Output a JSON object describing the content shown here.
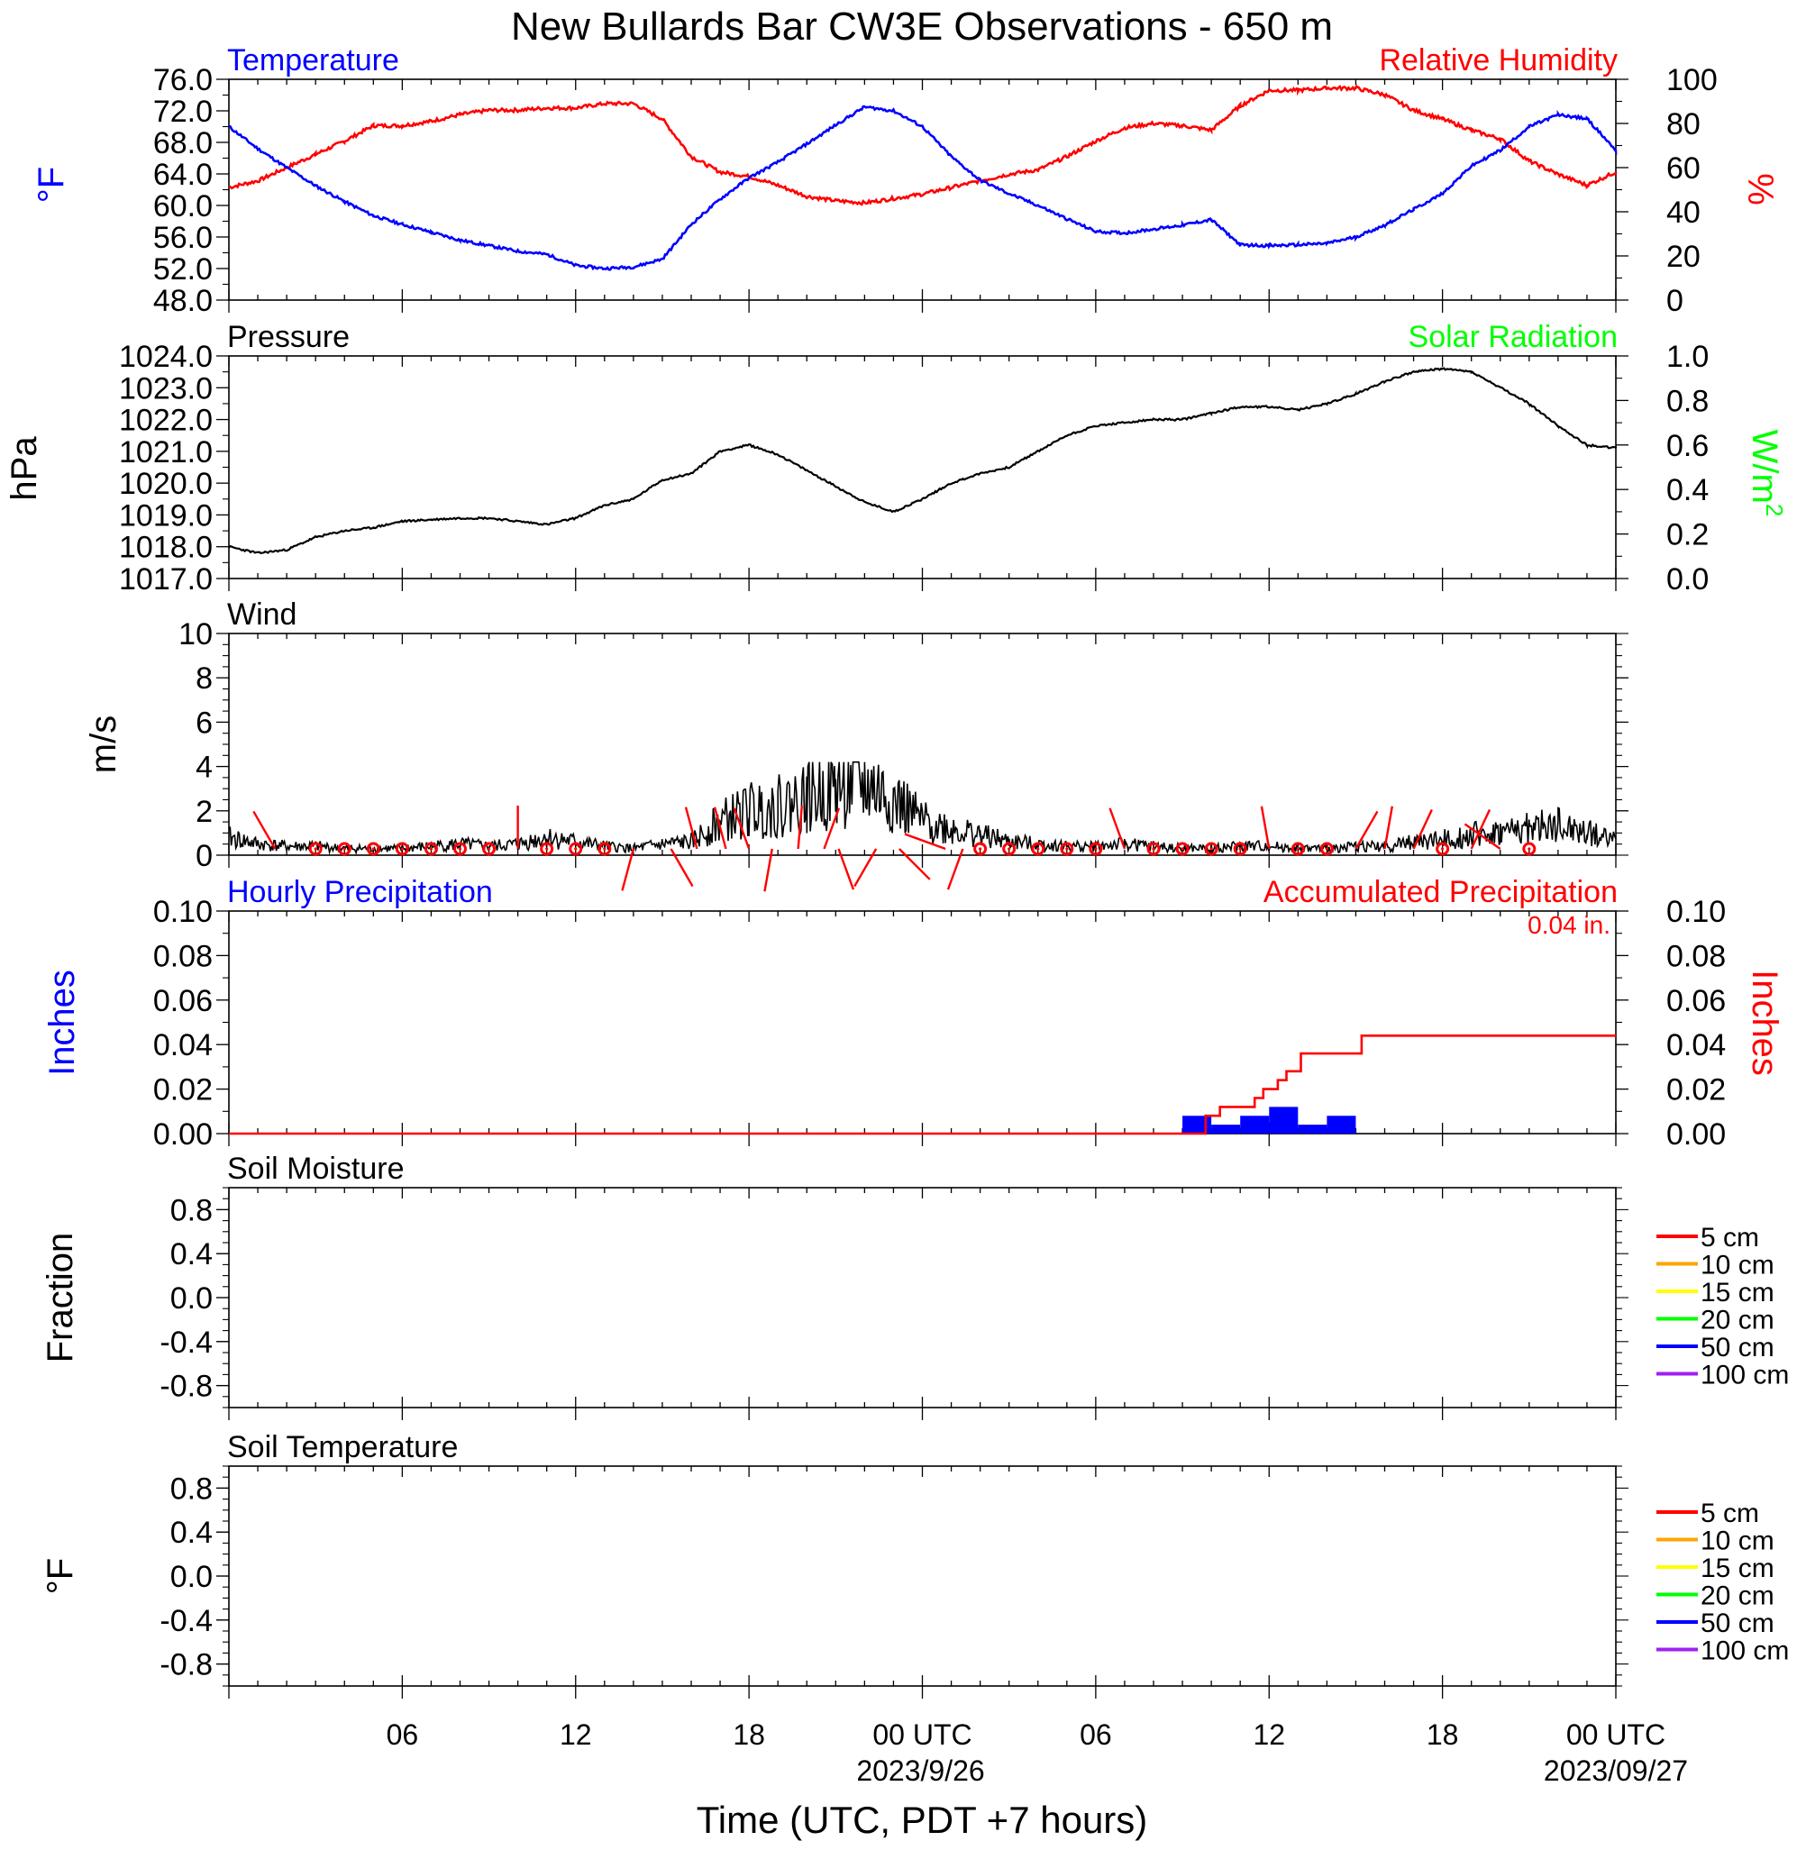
{
  "title": "New Bullards Bar CW3E Observations - 650 m",
  "x_axis": {
    "label": "Time (UTC, PDT +7 hours)",
    "ticks": [
      "06",
      "12",
      "18",
      "00 UTC",
      "06",
      "12",
      "18",
      "00 UTC"
    ],
    "dates": [
      "2023/9/26",
      "2023/09/27"
    ]
  },
  "colors": {
    "temperature": "#0000ff",
    "humidity": "#ff0000",
    "pressure": "#000000",
    "solar": "#00ff00",
    "wind": "#000000",
    "wind_barb": "#ff0000",
    "hourly_precip": "#0000ff",
    "accum_precip": "#ff0000"
  },
  "chart_data": [
    {
      "type": "line",
      "panel": "temperature-humidity",
      "left_title": "Temperature",
      "right_title": "Relative Humidity",
      "left_ylabel": "°F",
      "right_ylabel": "%",
      "left_ticks": [
        "76.0",
        "72.0",
        "68.0",
        "64.0",
        "60.0",
        "56.0",
        "52.0",
        "48.0"
      ],
      "right_ticks": [
        "100",
        "80",
        "60",
        "40",
        "20",
        "0"
      ],
      "left_ylim": [
        48,
        76
      ],
      "right_ylim": [
        0,
        100
      ],
      "x_hours": [
        0,
        1,
        2,
        3,
        4,
        5,
        6,
        7,
        8,
        9,
        10,
        11,
        12,
        13,
        14,
        15,
        16,
        17,
        18,
        19,
        20,
        21,
        22,
        23,
        24,
        25,
        26,
        27,
        28,
        29,
        30,
        31,
        32,
        33,
        34,
        35,
        36,
        37,
        38,
        39,
        40,
        41,
        42,
        43,
        44,
        45,
        46,
        47,
        48
      ],
      "series": [
        {
          "name": "Temperature",
          "axis": "left",
          "values": [
            70.0,
            67.2,
            64.8,
            62.5,
            60.5,
            58.7,
            57.6,
            56.6,
            55.6,
            54.9,
            54.2,
            53.8,
            52.4,
            52.0,
            52.2,
            53.2,
            57.6,
            60.8,
            63.5,
            65.5,
            67.8,
            70.2,
            72.5,
            72.0,
            70.0,
            66.2,
            63.2,
            61.5,
            60.0,
            58.3,
            56.7,
            56.5,
            57.0,
            57.5,
            58.2,
            55.0,
            54.9,
            55.0,
            55.2,
            56.0,
            57.5,
            59.5,
            61.5,
            65.0,
            67.0,
            70.0,
            71.5,
            71.0,
            67.0
          ]
        },
        {
          "name": "Relative Humidity",
          "axis": "right",
          "values": [
            51,
            54,
            60,
            66,
            72,
            79,
            79,
            81,
            84,
            86,
            86,
            87,
            87,
            89,
            89,
            82,
            65,
            58,
            56,
            52,
            47,
            45,
            44,
            46,
            48,
            51,
            54,
            57,
            59,
            65,
            72,
            78,
            80,
            79,
            77,
            88,
            95,
            95,
            96,
            96,
            93,
            86,
            82,
            77,
            73,
            63,
            57,
            52,
            58
          ]
        }
      ]
    },
    {
      "type": "line",
      "panel": "pressure-solar",
      "left_title": "Pressure",
      "right_title": "Solar Radiation",
      "left_ylabel": "hPa",
      "right_ylabel": "W/m",
      "right_ylabel_sup": "2",
      "left_ticks": [
        "1024.0",
        "1023.0",
        "1022.0",
        "1021.0",
        "1020.0",
        "1019.0",
        "1018.0",
        "1017.0"
      ],
      "right_ticks": [
        "1.0",
        "0.8",
        "0.6",
        "0.4",
        "0.2",
        "0.0"
      ],
      "left_ylim": [
        1017,
        1024
      ],
      "right_ylim": [
        0,
        1
      ],
      "x_hours": [
        0,
        1,
        2,
        3,
        4,
        5,
        6,
        7,
        8,
        9,
        10,
        11,
        12,
        13,
        14,
        15,
        16,
        17,
        18,
        19,
        20,
        21,
        22,
        23,
        24,
        25,
        26,
        27,
        28,
        29,
        30,
        31,
        32,
        33,
        34,
        35,
        36,
        37,
        38,
        39,
        40,
        41,
        42,
        43,
        44,
        45,
        46,
        47,
        48
      ],
      "series": [
        {
          "name": "Pressure",
          "axis": "left",
          "values": [
            1018.0,
            1017.8,
            1017.9,
            1018.3,
            1018.5,
            1018.6,
            1018.8,
            1018.85,
            1018.9,
            1018.9,
            1018.8,
            1018.7,
            1018.9,
            1019.3,
            1019.5,
            1020.1,
            1020.3,
            1021.0,
            1021.2,
            1020.9,
            1020.4,
            1019.9,
            1019.4,
            1019.1,
            1019.5,
            1020.0,
            1020.3,
            1020.5,
            1021.0,
            1021.5,
            1021.8,
            1021.9,
            1022.0,
            1022.0,
            1022.2,
            1022.4,
            1022.4,
            1022.3,
            1022.5,
            1022.8,
            1023.2,
            1023.5,
            1023.6,
            1023.5,
            1023.0,
            1022.5,
            1021.8,
            1021.2,
            1021.1
          ]
        }
      ]
    },
    {
      "type": "line",
      "panel": "wind",
      "left_title": "Wind",
      "left_ylabel": "m/s",
      "left_ticks": [
        "10",
        "8",
        "6",
        "4",
        "2",
        "0"
      ],
      "left_ylim": [
        0,
        10
      ],
      "x_hours": [
        0,
        1,
        2,
        3,
        4,
        5,
        6,
        7,
        8,
        9,
        10,
        11,
        12,
        13,
        14,
        15,
        16,
        17,
        18,
        19,
        20,
        21,
        22,
        23,
        24,
        25,
        26,
        27,
        28,
        29,
        30,
        31,
        32,
        33,
        34,
        35,
        36,
        37,
        38,
        39,
        40,
        41,
        42,
        43,
        44,
        45,
        46,
        47,
        48
      ],
      "series": [
        {
          "name": "Wind speed",
          "axis": "left",
          "values": [
            0.8,
            0.5,
            0.4,
            0.4,
            0.3,
            0.3,
            0.3,
            0.4,
            0.5,
            0.4,
            0.5,
            0.8,
            0.6,
            0.4,
            0.3,
            0.5,
            0.6,
            1.5,
            2.0,
            2.2,
            2.6,
            3.0,
            3.2,
            2.5,
            1.5,
            1.2,
            0.9,
            0.6,
            0.5,
            0.4,
            0.4,
            0.5,
            0.4,
            0.3,
            0.3,
            0.4,
            0.4,
            0.3,
            0.3,
            0.4,
            0.4,
            0.6,
            0.7,
            0.9,
            1.0,
            1.2,
            1.3,
            1.0,
            0.7
          ]
        }
      ],
      "barbs": [
        {
          "hour": 1.6,
          "dir_deg": 330
        },
        {
          "hour": 3,
          "calm": true
        },
        {
          "hour": 4,
          "calm": true
        },
        {
          "hour": 5,
          "calm": true
        },
        {
          "hour": 6,
          "calm": true
        },
        {
          "hour": 7,
          "calm": true
        },
        {
          "hour": 8,
          "calm": true
        },
        {
          "hour": 9,
          "calm": true
        },
        {
          "hour": 10,
          "dir_deg": 0
        },
        {
          "hour": 11,
          "calm": true
        },
        {
          "hour": 12,
          "calm": true
        },
        {
          "hour": 13,
          "calm": true
        },
        {
          "hour": 14,
          "dir_deg": 195
        },
        {
          "hour": 15.3,
          "dir_deg": 150
        },
        {
          "hour": 16.2,
          "dir_deg": 345
        },
        {
          "hour": 17.2,
          "dir_deg": 345
        },
        {
          "hour": 18,
          "dir_deg": 340
        },
        {
          "hour": 18.8,
          "dir_deg": 190
        },
        {
          "hour": 19.7,
          "dir_deg": 5
        },
        {
          "hour": 20.6,
          "dir_deg": 20
        },
        {
          "hour": 21.1,
          "dir_deg": 160
        },
        {
          "hour": 22.4,
          "dir_deg": 210
        },
        {
          "hour": 23.2,
          "dir_deg": 135
        },
        {
          "hour": 24.8,
          "dir_deg": 290
        },
        {
          "hour": 25.4,
          "dir_deg": 200
        },
        {
          "hour": 26,
          "calm": true
        },
        {
          "hour": 27,
          "calm": true
        },
        {
          "hour": 28,
          "calm": true
        },
        {
          "hour": 29,
          "calm": true
        },
        {
          "hour": 30,
          "calm": true
        },
        {
          "hour": 31,
          "dir_deg": 340
        },
        {
          "hour": 32,
          "calm": true
        },
        {
          "hour": 33,
          "calm": true
        },
        {
          "hour": 34,
          "calm": true
        },
        {
          "hour": 35,
          "calm": true
        },
        {
          "hour": 36,
          "dir_deg": 350
        },
        {
          "hour": 37,
          "calm": true
        },
        {
          "hour": 38,
          "calm": true
        },
        {
          "hour": 39,
          "dir_deg": 30
        },
        {
          "hour": 40,
          "dir_deg": 10
        },
        {
          "hour": 41,
          "dir_deg": 25
        },
        {
          "hour": 42,
          "calm": true
        },
        {
          "hour": 43,
          "dir_deg": 25
        },
        {
          "hour": 44,
          "dir_deg": 305
        },
        {
          "hour": 45,
          "calm": true
        }
      ]
    },
    {
      "type": "bar",
      "panel": "precipitation",
      "left_title": "Hourly Precipitation",
      "right_title": "Accumulated Precipitation",
      "total_label": "0.04 in.",
      "left_ylabel": "Inches",
      "right_ylabel": "Inches",
      "left_ticks": [
        "0.10",
        "0.08",
        "0.06",
        "0.04",
        "0.02",
        "0.00"
      ],
      "right_ticks": [
        "0.10",
        "0.08",
        "0.06",
        "0.04",
        "0.02",
        "0.00"
      ],
      "left_ylim": [
        0,
        0.1
      ],
      "right_ylim": [
        0,
        0.1
      ],
      "hourly": [
        {
          "start": 33,
          "end": 34,
          "value": 0.008
        },
        {
          "start": 34,
          "end": 35,
          "value": 0.004
        },
        {
          "start": 35,
          "end": 36,
          "value": 0.008
        },
        {
          "start": 36,
          "end": 37,
          "value": 0.012
        },
        {
          "start": 37,
          "end": 38,
          "value": 0.004
        },
        {
          "start": 38,
          "end": 39,
          "value": 0.008
        }
      ],
      "accumulated": {
        "x": [
          0,
          33.4,
          33.8,
          34.3,
          35.1,
          35.5,
          35.8,
          36.3,
          36.6,
          37.1,
          39.0,
          39.2,
          48.0
        ],
        "y": [
          0,
          0,
          0.008,
          0.012,
          0.012,
          0.016,
          0.02,
          0.024,
          0.028,
          0.036,
          0.036,
          0.044,
          0.044
        ]
      }
    },
    {
      "type": "line",
      "panel": "soil-moisture",
      "left_title": "Soil Moisture",
      "left_ylabel": "Fraction",
      "left_ticks": [
        "0.8",
        "0.4",
        "0.0",
        "-0.4",
        "-0.8"
      ],
      "left_ylim": [
        -1,
        1
      ],
      "legend": [
        "5 cm",
        "10 cm",
        "15 cm",
        "20 cm",
        "50 cm",
        "100 cm"
      ],
      "legend_colors": [
        "#ff0000",
        "#ffa500",
        "#ffff00",
        "#00ff00",
        "#0000ff",
        "#a020f0"
      ],
      "legend_position": "right"
    },
    {
      "type": "line",
      "panel": "soil-temperature",
      "left_title": "Soil Temperature",
      "left_ylabel": "°F",
      "left_ticks": [
        "0.8",
        "0.4",
        "0.0",
        "-0.4",
        "-0.8"
      ],
      "left_ylim": [
        -1,
        1
      ],
      "legend": [
        "5 cm",
        "10 cm",
        "15 cm",
        "20 cm",
        "50 cm",
        "100 cm"
      ],
      "legend_colors": [
        "#ff0000",
        "#ffa500",
        "#ffff00",
        "#00ff00",
        "#0000ff",
        "#a020f0"
      ],
      "legend_position": "right"
    }
  ]
}
